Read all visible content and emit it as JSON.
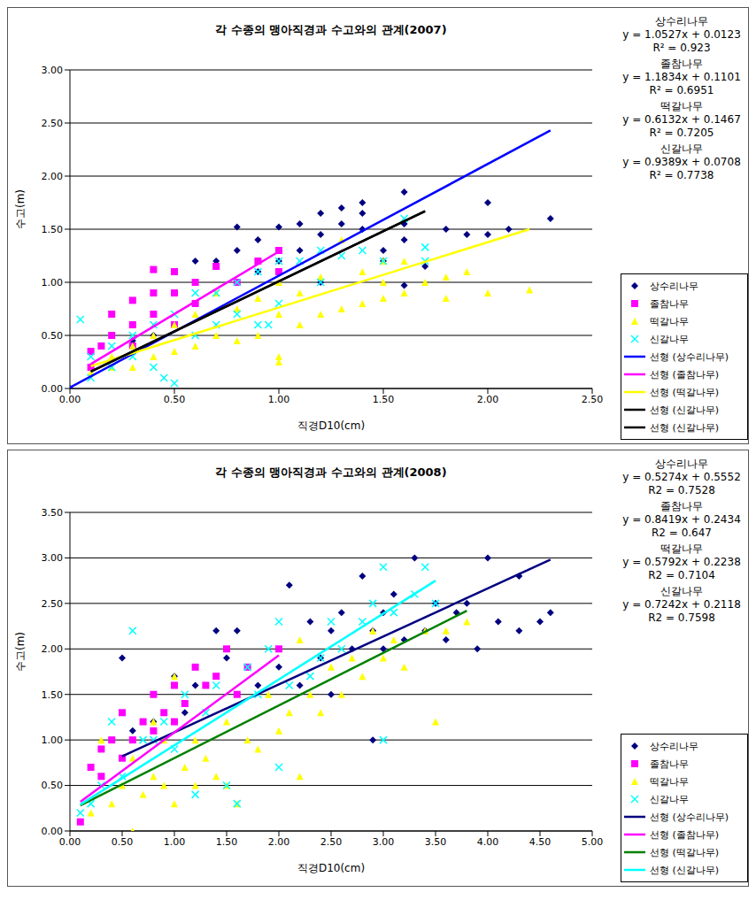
{
  "chart_data": [
    {
      "type": "scatter",
      "title": "각 수종의 맹아직경과 수고와의 관계(2007)",
      "x_label": "직경D10(cm)",
      "y_label": "수고(m)",
      "xlim": [
        0,
        2.5
      ],
      "xticks": [
        {
          "value": 0,
          "label": "0.00"
        },
        {
          "value": 0.5,
          "label": "0.50"
        },
        {
          "value": 1,
          "label": "1.00"
        },
        {
          "value": 1.5,
          "label": "1.50"
        },
        {
          "value": 2,
          "label": "2.00"
        },
        {
          "value": 2.5,
          "label": "2.50"
        }
      ],
      "ylim": [
        0,
        3
      ],
      "yticks": [
        {
          "value": 0,
          "label": "0.00"
        },
        {
          "value": 0.5,
          "label": "0.50"
        },
        {
          "value": 1,
          "label": "1.00"
        },
        {
          "value": 1.5,
          "label": "1.50"
        },
        {
          "value": 2,
          "label": "2.00"
        },
        {
          "value": 2.5,
          "label": "2.50"
        },
        {
          "value": 3,
          "label": "3.00"
        }
      ],
      "grid": true,
      "legend": "right",
      "annotations": [
        [
          "상수리나무",
          "y = 1.0527x + 0.0123",
          "R² = 0.923"
        ],
        [
          "졸참나무",
          "y = 1.1834x + 0.1101",
          "R² = 0.6951"
        ],
        [
          "떡갈나무",
          "y = 0.6132x + 0.1467",
          "R² = 0.7205"
        ],
        [
          "신갈나무",
          "y = 0.9389x + 0.0708",
          "R² = 0.7738"
        ]
      ],
      "series": [
        {
          "name": "상수리나무",
          "color": "#000080",
          "marker": "diamond",
          "x": [
            0,
            0.3,
            0.4,
            0.5,
            0.6,
            0.7,
            0.8,
            0.8,
            0.9,
            0.9,
            1.0,
            1.0,
            1.1,
            1.1,
            1.2,
            1.2,
            1.2,
            1.3,
            1.3,
            1.4,
            1.4,
            1.4,
            1.5,
            1.5,
            1.6,
            1.6,
            1.6,
            1.6,
            1.7,
            1.8,
            1.9,
            2.0,
            2.0,
            2.1,
            2.3
          ],
          "values": [
            0,
            0.45,
            0.5,
            0.6,
            1.2,
            1.2,
            1.52,
            1.3,
            1.4,
            1.1,
            1.52,
            1.2,
            1.55,
            1.3,
            1.65,
            1.45,
            1.0,
            1.7,
            1.55,
            1.75,
            1.65,
            1.5,
            1.3,
            1.2,
            1.85,
            1.55,
            1.4,
            0.97,
            1.15,
            1.5,
            1.45,
            1.75,
            1.45,
            1.5,
            1.6
          ]
        },
        {
          "name": "졸참나무",
          "color": "#ff00ff",
          "marker": "square",
          "x": [
            0.1,
            0.1,
            0.15,
            0.2,
            0.2,
            0.3,
            0.3,
            0.3,
            0.4,
            0.4,
            0.4,
            0.5,
            0.5,
            0.5,
            0.6,
            0.6,
            0.7,
            0.8,
            0.9,
            1.0,
            1.0
          ],
          "values": [
            0.35,
            0.2,
            0.4,
            0.7,
            0.5,
            0.83,
            0.6,
            0.4,
            1.12,
            0.9,
            0.7,
            1.1,
            0.9,
            0.6,
            1.0,
            0.8,
            1.15,
            1.0,
            1.2,
            1.3,
            1.1
          ]
        },
        {
          "name": "떡갈나무",
          "color": "#ffff00",
          "marker": "triangle",
          "x": [
            0.1,
            0.2,
            0.2,
            0.3,
            0.3,
            0.4,
            0.4,
            0.5,
            0.5,
            0.6,
            0.6,
            0.7,
            0.7,
            0.8,
            0.8,
            0.9,
            0.9,
            1.0,
            1.0,
            1.0,
            1.0,
            1.1,
            1.1,
            1.2,
            1.2,
            1.3,
            1.3,
            1.4,
            1.4,
            1.5,
            1.5,
            1.5,
            1.6,
            1.6,
            1.7,
            1.8,
            1.8,
            1.9,
            2.0,
            2.2
          ],
          "values": [
            0.15,
            0.2,
            0.3,
            0.2,
            0.4,
            0.3,
            0.5,
            0.35,
            0.6,
            0.4,
            0.7,
            0.5,
            0.9,
            0.45,
            0.75,
            0.5,
            0.85,
            0.25,
            0.3,
            0.7,
            1.0,
            0.6,
            0.9,
            0.7,
            1.05,
            0.75,
            1.4,
            0.8,
            1.1,
            0.85,
            1.2,
            1.0,
            0.9,
            1.2,
            1.0,
            1.05,
            0.85,
            1.1,
            0.9,
            0.93
          ]
        },
        {
          "name": "신갈나무",
          "color": "#00ffff",
          "marker": "x",
          "x": [
            0.05,
            0.1,
            0.1,
            0.2,
            0.2,
            0.3,
            0.3,
            0.4,
            0.4,
            0.45,
            0.5,
            0.5,
            0.6,
            0.6,
            0.7,
            0.7,
            0.8,
            0.8,
            0.9,
            0.9,
            0.95,
            1.0,
            1.0,
            1.1,
            1.2,
            1.2,
            1.3,
            1.4,
            1.5,
            1.6,
            1.7,
            1.7
          ],
          "values": [
            0.65,
            0.3,
            0.1,
            0.4,
            0.2,
            0.5,
            0.3,
            0.6,
            0.2,
            0.1,
            0.7,
            0.05,
            0.9,
            0.5,
            0.9,
            0.6,
            1.0,
            0.7,
            1.1,
            0.6,
            0.6,
            1.2,
            0.8,
            1.2,
            1.3,
            1.0,
            1.25,
            1.3,
            1.2,
            1.6,
            1.33,
            1.2
          ]
        },
        {
          "name": "선형 (상수리나무)",
          "type": "line",
          "line_style": "solid",
          "color": "#0000ff",
          "x": [
            0,
            2.3
          ],
          "values": [
            0.01,
            2.43
          ]
        },
        {
          "name": "선형 (졸참나무)",
          "type": "line",
          "line_style": "solid",
          "color": "#ff00ff",
          "x": [
            0.1,
            1.0
          ],
          "values": [
            0.23,
            1.29
          ]
        },
        {
          "name": "선형 (떡갈나무)",
          "type": "line",
          "line_style": "solid",
          "color": "#ffff00",
          "x": [
            0.1,
            2.2
          ],
          "values": [
            0.21,
            1.5
          ]
        },
        {
          "name": "선형 (신갈나무)",
          "type": "line",
          "line_style": "solid",
          "color": "#000000",
          "x": [
            0.1,
            1.7
          ],
          "values": [
            0.16,
            1.67
          ]
        },
        {
          "name": "선형 (신갈나무)",
          "type": "line",
          "line_style": "solid",
          "color": "#000000",
          "x": [
            0.1,
            1.7
          ],
          "values": [
            0.16,
            1.67
          ]
        }
      ]
    },
    {
      "type": "scatter",
      "title": "각 수종의 맹아직경과 수고와의 관계(2008)",
      "x_label": "직경D10(cm)",
      "y_label": "수고(m)",
      "xlim": [
        0,
        5
      ],
      "xticks": [
        {
          "value": 0,
          "label": "0.00"
        },
        {
          "value": 0.5,
          "label": "0.50"
        },
        {
          "value": 1,
          "label": "1.00"
        },
        {
          "value": 1.5,
          "label": "1.50"
        },
        {
          "value": 2,
          "label": "2.00"
        },
        {
          "value": 2.5,
          "label": "2.50"
        },
        {
          "value": 3,
          "label": "3.00"
        },
        {
          "value": 3.5,
          "label": "3.50"
        },
        {
          "value": 4,
          "label": "4.00"
        },
        {
          "value": 4.5,
          "label": "4.50"
        },
        {
          "value": 5,
          "label": "5.00"
        }
      ],
      "ylim": [
        0,
        3.5
      ],
      "yticks": [
        {
          "value": 0,
          "label": "0.00"
        },
        {
          "value": 0.5,
          "label": "0.50"
        },
        {
          "value": 1,
          "label": "1.00"
        },
        {
          "value": 1.5,
          "label": "1.50"
        },
        {
          "value": 2,
          "label": "2.00"
        },
        {
          "value": 2.5,
          "label": "2.50"
        },
        {
          "value": 3,
          "label": "3.00"
        },
        {
          "value": 3.5,
          "label": "3.50"
        }
      ],
      "grid": true,
      "legend": "right",
      "annotations": [
        [
          "상수리나무",
          "y = 0.5274x + 0.5552",
          "R2 = 0.7528"
        ],
        [
          "졸참나무",
          "y = 0.8419x + 0.2434",
          "R2 = 0.647"
        ],
        [
          "떡갈나무",
          "y = 0.5792x + 0.2238",
          "R2 = 0.7104"
        ],
        [
          "신갈나무",
          "y = 0.7242x + 0.2118",
          "R2 = 0.7598"
        ]
      ],
      "series": [
        {
          "name": "상수리나무",
          "color": "#000080",
          "marker": "diamond",
          "x": [
            0.5,
            0.6,
            0.8,
            1.0,
            1.1,
            1.2,
            1.4,
            1.5,
            1.6,
            1.8,
            2.0,
            2.1,
            2.2,
            2.3,
            2.4,
            2.5,
            2.5,
            2.6,
            2.7,
            2.8,
            2.9,
            2.9,
            3.0,
            3.0,
            3.1,
            3.2,
            3.3,
            3.4,
            3.5,
            3.6,
            3.7,
            3.8,
            3.9,
            4.0,
            4.1,
            4.3,
            4.3,
            4.5,
            4.6
          ],
          "values": [
            1.9,
            1.1,
            1.2,
            1.7,
            1.3,
            1.6,
            2.2,
            1.9,
            2.2,
            1.6,
            1.8,
            2.7,
            1.6,
            2.3,
            1.9,
            1.5,
            2.2,
            2.4,
            2.0,
            2.8,
            2.2,
            1.0,
            2.0,
            2.4,
            2.6,
            2.1,
            3.0,
            2.2,
            2.5,
            2.1,
            2.4,
            2.5,
            2.0,
            3.0,
            2.3,
            2.8,
            2.2,
            2.3,
            2.4
          ]
        },
        {
          "name": "졸참나무",
          "color": "#ff00ff",
          "marker": "square",
          "x": [
            0.1,
            0.2,
            0.3,
            0.3,
            0.4,
            0.5,
            0.5,
            0.6,
            0.7,
            0.8,
            0.8,
            0.9,
            1.0,
            1.0,
            1.1,
            1.2,
            1.3,
            1.4,
            1.5,
            1.6,
            1.7,
            2.0
          ],
          "values": [
            0.1,
            0.7,
            0.9,
            0.6,
            1.0,
            1.3,
            0.8,
            1.0,
            1.2,
            1.5,
            1.1,
            1.3,
            1.6,
            1.2,
            1.4,
            1.8,
            1.6,
            1.7,
            2.0,
            1.5,
            1.8,
            2.0
          ]
        },
        {
          "name": "떡갈나무",
          "color": "#ffff00",
          "marker": "triangle",
          "x": [
            0.2,
            0.3,
            0.4,
            0.5,
            0.6,
            0.6,
            0.7,
            0.8,
            0.8,
            0.9,
            0.9,
            1.0,
            1.0,
            1.1,
            1.2,
            1.2,
            1.3,
            1.4,
            1.5,
            1.5,
            1.6,
            1.7,
            1.8,
            1.9,
            2.0,
            2.1,
            2.2,
            2.2,
            2.3,
            2.4,
            2.5,
            2.6,
            2.7,
            2.8,
            2.9,
            3.0,
            3.1,
            3.2,
            3.4,
            3.5,
            3.6,
            3.8
          ],
          "values": [
            0.2,
            1.0,
            0.3,
            0.5,
            0.0,
            0.8,
            0.4,
            0.6,
            1.2,
            0.5,
            1.0,
            0.3,
            1.7,
            0.7,
            0.5,
            1.0,
            0.8,
            0.6,
            0.5,
            1.2,
            0.3,
            1.0,
            0.9,
            1.5,
            1.1,
            1.3,
            0.6,
            2.1,
            1.5,
            1.3,
            1.8,
            1.5,
            1.9,
            1.7,
            2.2,
            1.9,
            2.1,
            1.8,
            2.2,
            1.2,
            2.2,
            2.3
          ]
        },
        {
          "name": "신갈나무",
          "color": "#00ffff",
          "marker": "x",
          "x": [
            0.1,
            0.2,
            0.3,
            0.4,
            0.5,
            0.6,
            0.7,
            0.8,
            0.9,
            1.0,
            1.1,
            1.2,
            1.3,
            1.4,
            1.5,
            1.6,
            1.7,
            1.8,
            1.9,
            2.0,
            2.0,
            2.1,
            2.3,
            2.4,
            2.5,
            2.6,
            2.8,
            2.9,
            3.0,
            3.0,
            3.1,
            3.3,
            3.4,
            3.5
          ],
          "values": [
            0.2,
            0.3,
            0.5,
            1.2,
            0.6,
            2.2,
            1.0,
            1.0,
            1.2,
            0.9,
            1.5,
            0.4,
            1.3,
            1.6,
            0.5,
            0.3,
            1.8,
            1.5,
            2.0,
            0.7,
            2.3,
            1.6,
            1.7,
            1.9,
            2.3,
            2.0,
            2.3,
            2.5,
            1.0,
            2.9,
            2.4,
            2.6,
            2.9,
            2.5
          ]
        },
        {
          "name": "선형 (상수리나무)",
          "type": "line",
          "line_style": "solid",
          "color": "#000080",
          "x": [
            0.5,
            4.6
          ],
          "values": [
            0.82,
            2.98
          ]
        },
        {
          "name": "선형 (졸참나무)",
          "type": "line",
          "line_style": "solid",
          "color": "#ff00ff",
          "x": [
            0.1,
            2.0
          ],
          "values": [
            0.32,
            1.93
          ]
        },
        {
          "name": "선형 (떡갈나무)",
          "type": "line",
          "line_style": "solid",
          "color": "#008000",
          "x": [
            0.1,
            3.8
          ],
          "values": [
            0.28,
            2.42
          ]
        },
        {
          "name": "선형 (신갈나무)",
          "type": "line",
          "line_style": "solid",
          "color": "#00ffff",
          "x": [
            0.1,
            3.5
          ],
          "values": [
            0.29,
            2.75
          ]
        }
      ]
    }
  ]
}
